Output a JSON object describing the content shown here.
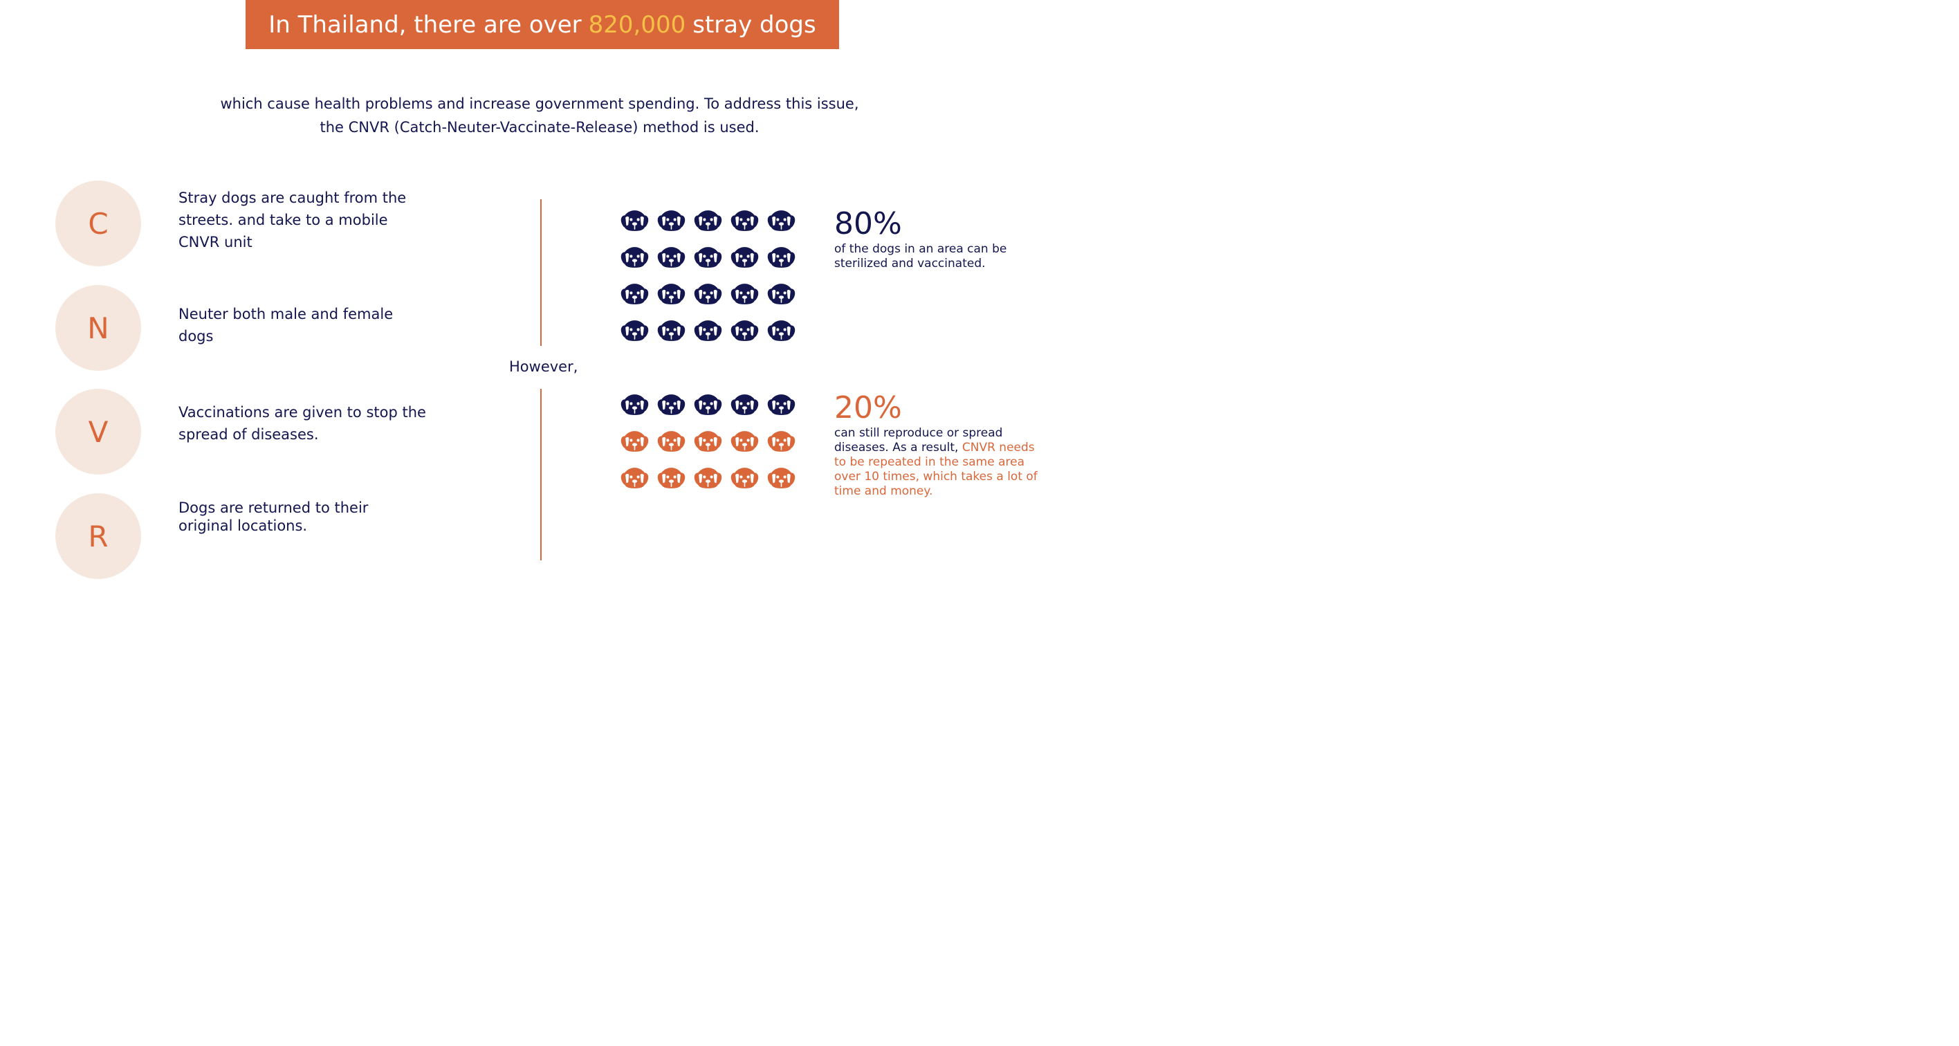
{
  "banner": {
    "prefix": "In Thailand, there are over",
    "highlight": "820,000",
    "suffix": "stray dogs"
  },
  "intro": {
    "line1": "which cause health problems and increase government spending. To address this issue,",
    "line2": "the CNVR (Catch-Neuter-Vaccinate-Release) method is used."
  },
  "steps": [
    {
      "letter": "C",
      "text": "Stray dogs are caught from the streets. and take to a mobile CNVR unit"
    },
    {
      "letter": "N",
      "text": "Neuter both male and female dogs"
    },
    {
      "letter": "V",
      "text": "Vaccinations are given to stop the spread of diseases."
    },
    {
      "letter": "R",
      "text": "Dogs are returned to their original locations."
    }
  ],
  "divider": {
    "label": "However,"
  },
  "stats": [
    {
      "value": "80%",
      "description": "of the dogs in an area can be sterilized and vaccinated.",
      "icon": "dog-face-icon",
      "icon_rows": [
        "navy",
        "navy",
        "navy",
        "navy"
      ],
      "icons_per_row": 5
    },
    {
      "value": "20%",
      "description": "can still reproduce or spread diseases. As a result,",
      "description_highlight": "CNVR needs to be repeated in the same area over 10 times, which takes a lot of time and money.",
      "icon": "dog-face-icon",
      "icon_rows": [
        "navy",
        "orange",
        "orange"
      ],
      "icons_per_row": 5
    }
  ],
  "colors": {
    "accent": "#d9673a",
    "highlight": "#f6bf45",
    "navy": "#13164f",
    "circle_bg": "#f5e7dd"
  }
}
